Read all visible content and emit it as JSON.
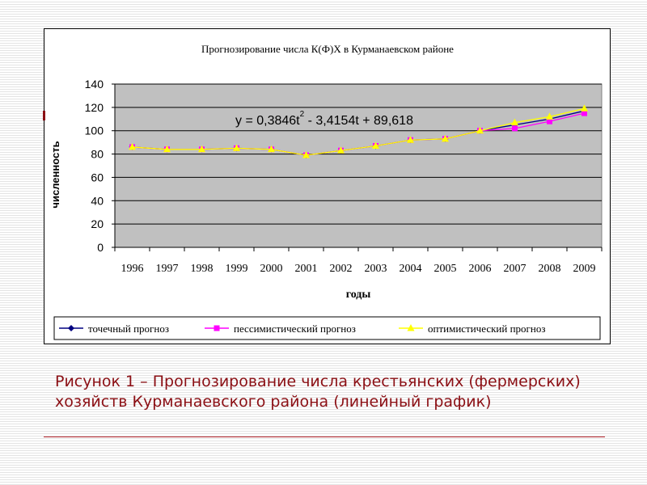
{
  "chart_data": {
    "type": "line",
    "title": "Прогнозирование числа К(Ф)Х в Курманаевском районе",
    "xlabel": "годы",
    "ylabel": "численность",
    "categories": [
      "1996",
      "1997",
      "1998",
      "1999",
      "2000",
      "2001",
      "2002",
      "2003",
      "2004",
      "2005",
      "2006",
      "2007",
      "2008",
      "2009"
    ],
    "ylim": [
      0,
      140
    ],
    "yticks": [
      0,
      20,
      40,
      60,
      80,
      100,
      120,
      140
    ],
    "grid": true,
    "plot_background": "#c0c0c0",
    "legend_position": "bottom",
    "annotation": {
      "text": "y = 0,3846t",
      "sup": "2",
      "rest": " - 3,4154t + 89,618"
    },
    "series": [
      {
        "name": "точечный прогноз",
        "color": "#000080",
        "marker": "diamond",
        "values": [
          86,
          84,
          84,
          85,
          84,
          79,
          83,
          87,
          92,
          93,
          100,
          105,
          110,
          117
        ]
      },
      {
        "name": "пессимистический прогноз",
        "color": "#ff00ff",
        "marker": "square",
        "values": [
          86,
          84,
          84,
          85,
          84,
          79,
          83,
          87,
          92,
          93,
          100,
          102,
          108,
          115
        ]
      },
      {
        "name": "оптимистический прогноз",
        "color": "#ffff00",
        "marker": "triangle",
        "values": [
          86,
          84,
          84,
          85,
          84,
          79,
          83,
          87,
          92,
          93,
          100,
          107,
          112,
          119
        ]
      }
    ]
  },
  "caption": "Рисунок 1 – Прогнозирование числа крестьянских (фермерских) хозяйств Курманаевского района (линейный график)"
}
